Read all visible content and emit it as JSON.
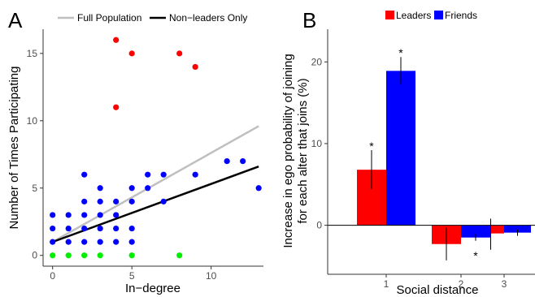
{
  "chart_data": [
    {
      "panel_label": "A",
      "type": "scatter",
      "xlabel": "In−degree",
      "ylabel": "Number of Times Participating",
      "xlim": [
        -0.6,
        13.3
      ],
      "ylim": [
        -0.8,
        16.8
      ],
      "xticks": [
        0,
        5,
        10
      ],
      "yticks": [
        0,
        5,
        10,
        15
      ],
      "grid": false,
      "legend": {
        "position": "top",
        "entries": [
          "Full Population",
          "Non−leaders Only"
        ]
      },
      "lines": [
        {
          "name": "Full Population",
          "color": "#bfbfbf",
          "x": [
            0,
            13
          ],
          "y": [
            1.0,
            9.6
          ]
        },
        {
          "name": "Non−leaders Only",
          "color": "#000000",
          "x": [
            0,
            13
          ],
          "y": [
            1.0,
            6.6
          ]
        }
      ],
      "point_groups": [
        {
          "color": "#ff0000",
          "points": [
            [
              4,
              16
            ],
            [
              5,
              15
            ],
            [
              8,
              15
            ],
            [
              9,
              14
            ],
            [
              4,
              11
            ]
          ]
        },
        {
          "color": "#0000ff",
          "points": [
            [
              0,
              3
            ],
            [
              0,
              2
            ],
            [
              0,
              1
            ],
            [
              1,
              3
            ],
            [
              1,
              2
            ],
            [
              1,
              1
            ],
            [
              2,
              6
            ],
            [
              2,
              4
            ],
            [
              2,
              3
            ],
            [
              2,
              2
            ],
            [
              2,
              1
            ],
            [
              3,
              5
            ],
            [
              3,
              4
            ],
            [
              3,
              3
            ],
            [
              3,
              2
            ],
            [
              3,
              1
            ],
            [
              4,
              4
            ],
            [
              4,
              3
            ],
            [
              4,
              2
            ],
            [
              4,
              1
            ],
            [
              5,
              5
            ],
            [
              5,
              4
            ],
            [
              5,
              2
            ],
            [
              5,
              1
            ],
            [
              6,
              6
            ],
            [
              6,
              5
            ],
            [
              7,
              6
            ],
            [
              7,
              4
            ],
            [
              9,
              6
            ],
            [
              11,
              7
            ],
            [
              12,
              7
            ],
            [
              13,
              5
            ]
          ]
        },
        {
          "color": "#00ee00",
          "points": [
            [
              0,
              0
            ],
            [
              1,
              0
            ],
            [
              2,
              0
            ],
            [
              3,
              0
            ],
            [
              5,
              0
            ],
            [
              8,
              0
            ]
          ]
        }
      ]
    },
    {
      "panel_label": "B",
      "type": "bar",
      "xlabel": "Social distance",
      "ylabel": "Increase in ego probability of joining",
      "ylabel2": "for each alter that joins (%)",
      "categories": [
        "1",
        "2",
        "3"
      ],
      "ylim": [
        -6,
        24
      ],
      "yticks": [
        0,
        10,
        20
      ],
      "grid": false,
      "legend": {
        "position": "top"
      },
      "series": [
        {
          "name": "Leaders",
          "color": "#ff0000",
          "values": [
            6.8,
            -2.3,
            -1.0
          ],
          "err_low": [
            4.4,
            -4.3,
            -3.0
          ],
          "err_high": [
            9.2,
            -0.3,
            0.8
          ]
        },
        {
          "name": "Friends",
          "color": "#0000ff",
          "values": [
            18.9,
            -1.5,
            -0.9
          ],
          "err_low": [
            17.3,
            -1.9,
            -1.3
          ],
          "err_high": [
            20.6,
            -1.1,
            -0.5
          ]
        }
      ],
      "annotations": [
        {
          "text": "*",
          "category": 0,
          "series": 0,
          "y": 9.8
        },
        {
          "text": "*",
          "category": 0,
          "series": 1,
          "y": 21.2
        },
        {
          "text": "*",
          "category": 1,
          "series": 1,
          "y": -3.6
        }
      ]
    }
  ]
}
